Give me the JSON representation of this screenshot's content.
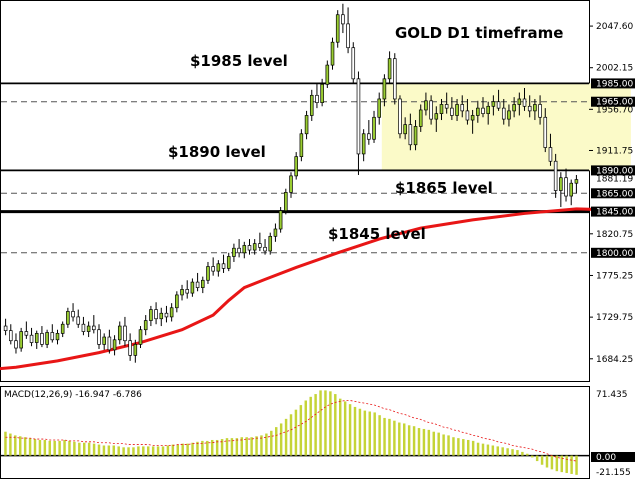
{
  "chart_data": {
    "type": "candlestick",
    "title": "GOLD D1 timeframe",
    "price_axis": {
      "range": [
        1660,
        2075
      ],
      "ticks": [
        {
          "value": 2047.6,
          "label": "2047.60"
        },
        {
          "value": 2002.15,
          "label": "2002.15"
        },
        {
          "value": 1956.7,
          "label": "1956.70"
        },
        {
          "value": 1911.75,
          "label": "1911.75"
        },
        {
          "value": 1820.75,
          "label": "1820.75"
        },
        {
          "value": 1775.25,
          "label": "1775.25"
        },
        {
          "value": 1729.75,
          "label": "1729.75"
        },
        {
          "value": 1684.25,
          "label": "1684.25"
        }
      ],
      "current_price": {
        "value": 1881.19,
        "label": "1881.19"
      }
    },
    "levels": [
      {
        "value": 1985.0,
        "label": "1985.00",
        "style": "solid"
      },
      {
        "value": 1965.0,
        "label": "1965.00",
        "style": "dashed"
      },
      {
        "value": 1890.0,
        "label": "1890.00",
        "style": "solid"
      },
      {
        "value": 1865.0,
        "label": "1865.00",
        "style": "dashed"
      },
      {
        "value": 1845.0,
        "label": "1845.00",
        "style": "thick"
      },
      {
        "value": 1800.0,
        "label": "1800.00",
        "style": "dashed"
      }
    ],
    "range_box": {
      "from_index": 73,
      "to_index": 120,
      "low": 1890,
      "high": 1985,
      "color": "#fbfac8"
    },
    "annotations": [
      {
        "text": "GOLD D1 timeframe"
      },
      {
        "text": "$1985 level"
      },
      {
        "text": "$1890 level"
      },
      {
        "text": "$1865 level"
      },
      {
        "text": "$1845 level"
      }
    ],
    "candles": [
      [
        1720,
        1728,
        1710,
        1715
      ],
      [
        1715,
        1722,
        1700,
        1704
      ],
      [
        1704,
        1712,
        1690,
        1696
      ],
      [
        1696,
        1718,
        1692,
        1714
      ],
      [
        1714,
        1725,
        1706,
        1710
      ],
      [
        1710,
        1718,
        1698,
        1702
      ],
      [
        1702,
        1715,
        1695,
        1712
      ],
      [
        1712,
        1720,
        1697,
        1700
      ],
      [
        1700,
        1716,
        1696,
        1713
      ],
      [
        1713,
        1722,
        1702,
        1705
      ],
      [
        1705,
        1716,
        1700,
        1712
      ],
      [
        1712,
        1725,
        1708,
        1722
      ],
      [
        1722,
        1740,
        1718,
        1736
      ],
      [
        1736,
        1745,
        1725,
        1730
      ],
      [
        1730,
        1738,
        1718,
        1722
      ],
      [
        1722,
        1730,
        1710,
        1714
      ],
      [
        1714,
        1725,
        1708,
        1720
      ],
      [
        1720,
        1732,
        1712,
        1716
      ],
      [
        1716,
        1722,
        1695,
        1700
      ],
      [
        1700,
        1712,
        1694,
        1708
      ],
      [
        1708,
        1716,
        1690,
        1694
      ],
      [
        1694,
        1710,
        1688,
        1705
      ],
      [
        1705,
        1725,
        1700,
        1720
      ],
      [
        1720,
        1730,
        1698,
        1704
      ],
      [
        1704,
        1712,
        1682,
        1688
      ],
      [
        1688,
        1705,
        1680,
        1700
      ],
      [
        1700,
        1720,
        1696,
        1716
      ],
      [
        1716,
        1732,
        1710,
        1726
      ],
      [
        1726,
        1742,
        1720,
        1738
      ],
      [
        1738,
        1746,
        1722,
        1728
      ],
      [
        1728,
        1740,
        1720,
        1734
      ],
      [
        1734,
        1742,
        1724,
        1730
      ],
      [
        1730,
        1745,
        1725,
        1740
      ],
      [
        1740,
        1758,
        1735,
        1754
      ],
      [
        1754,
        1765,
        1748,
        1760
      ],
      [
        1760,
        1770,
        1750,
        1756
      ],
      [
        1756,
        1772,
        1752,
        1768
      ],
      [
        1768,
        1778,
        1758,
        1762
      ],
      [
        1762,
        1774,
        1756,
        1770
      ],
      [
        1770,
        1790,
        1766,
        1785
      ],
      [
        1785,
        1795,
        1775,
        1780
      ],
      [
        1780,
        1792,
        1774,
        1788
      ],
      [
        1788,
        1798,
        1778,
        1783
      ],
      [
        1783,
        1800,
        1780,
        1796
      ],
      [
        1796,
        1810,
        1790,
        1805
      ],
      [
        1805,
        1815,
        1795,
        1800
      ],
      [
        1800,
        1812,
        1794,
        1808
      ],
      [
        1808,
        1815,
        1798,
        1803
      ],
      [
        1803,
        1815,
        1798,
        1810
      ],
      [
        1810,
        1822,
        1802,
        1806
      ],
      [
        1806,
        1815,
        1798,
        1802
      ],
      [
        1802,
        1822,
        1798,
        1818
      ],
      [
        1818,
        1832,
        1812,
        1826
      ],
      [
        1826,
        1850,
        1822,
        1846
      ],
      [
        1846,
        1870,
        1842,
        1866
      ],
      [
        1866,
        1888,
        1860,
        1884
      ],
      [
        1884,
        1910,
        1880,
        1905
      ],
      [
        1905,
        1935,
        1900,
        1930
      ],
      [
        1930,
        1955,
        1924,
        1950
      ],
      [
        1950,
        1978,
        1944,
        1972
      ],
      [
        1972,
        1985,
        1958,
        1964
      ],
      [
        1964,
        1990,
        1960,
        1984
      ],
      [
        1984,
        2010,
        1980,
        2005
      ],
      [
        2005,
        2035,
        2000,
        2030
      ],
      [
        2030,
        2065,
        2024,
        2060
      ],
      [
        2060,
        2072,
        2040,
        2050
      ],
      [
        2050,
        2068,
        2018,
        2024
      ],
      [
        2024,
        2030,
        1985,
        1990
      ],
      [
        1990,
        1998,
        1885,
        1908
      ],
      [
        1908,
        1935,
        1900,
        1930
      ],
      [
        1930,
        1945,
        1918,
        1924
      ],
      [
        1924,
        1955,
        1920,
        1948
      ],
      [
        1948,
        1975,
        1940,
        1968
      ],
      [
        1968,
        1995,
        1960,
        1990
      ],
      [
        1990,
        2020,
        1985,
        2012
      ],
      [
        2012,
        2018,
        1962,
        1968
      ],
      [
        1968,
        1972,
        1925,
        1930
      ],
      [
        1930,
        1948,
        1924,
        1940
      ],
      [
        1940,
        1952,
        1912,
        1918
      ],
      [
        1918,
        1945,
        1912,
        1938
      ],
      [
        1938,
        1962,
        1932,
        1956
      ],
      [
        1956,
        1975,
        1950,
        1966
      ],
      [
        1966,
        1972,
        1940,
        1946
      ],
      [
        1946,
        1960,
        1932,
        1952
      ],
      [
        1952,
        1968,
        1945,
        1962
      ],
      [
        1962,
        1975,
        1952,
        1958
      ],
      [
        1958,
        1970,
        1945,
        1950
      ],
      [
        1950,
        1968,
        1944,
        1962
      ],
      [
        1962,
        1972,
        1948,
        1955
      ],
      [
        1955,
        1968,
        1940,
        1945
      ],
      [
        1945,
        1956,
        1930,
        1950
      ],
      [
        1950,
        1966,
        1942,
        1958
      ],
      [
        1958,
        1970,
        1948,
        1952
      ],
      [
        1952,
        1965,
        1940,
        1960
      ],
      [
        1960,
        1972,
        1950,
        1965
      ],
      [
        1965,
        1978,
        1955,
        1958
      ],
      [
        1958,
        1968,
        1940,
        1946
      ],
      [
        1946,
        1962,
        1938,
        1955
      ],
      [
        1955,
        1970,
        1948,
        1962
      ],
      [
        1962,
        1975,
        1950,
        1968
      ],
      [
        1968,
        1980,
        1955,
        1960
      ],
      [
        1960,
        1972,
        1948,
        1955
      ],
      [
        1955,
        1968,
        1945,
        1962
      ],
      [
        1962,
        1972,
        1940,
        1948
      ],
      [
        1948,
        1958,
        1910,
        1915
      ],
      [
        1915,
        1930,
        1895,
        1900
      ],
      [
        1900,
        1908,
        1860,
        1868
      ],
      [
        1868,
        1888,
        1850,
        1882
      ],
      [
        1882,
        1892,
        1856,
        1862
      ],
      [
        1862,
        1880,
        1852,
        1876
      ],
      [
        1876,
        1885,
        1865,
        1880
      ]
    ],
    "moving_average": {
      "color": "#e81616",
      "points": [
        [
          38,
          1661
        ],
        [
          45,
          1664
        ],
        [
          55,
          1668
        ],
        [
          64,
          1671
        ],
        [
          72,
          1675
        ],
        [
          80,
          1682
        ],
        [
          88,
          1691
        ],
        [
          96,
          1702
        ],
        [
          104,
          1716
        ],
        [
          110,
          1732
        ],
        [
          113,
          1748
        ],
        [
          116,
          1762
        ],
        [
          120,
          1771
        ],
        [
          126,
          1784
        ],
        [
          134,
          1800
        ],
        [
          142,
          1815
        ],
        [
          150,
          1827
        ],
        [
          160,
          1836
        ],
        [
          170,
          1843
        ],
        [
          180,
          1848
        ],
        [
          186,
          1847
        ]
      ],
      "x_index_offset": -70
    },
    "macd": {
      "label": "MACD(12,26,9) -16.947 -6.786",
      "axis_top_label": "71.435",
      "axis_zero_label": "0.00",
      "axis_bottom_label": "-21.155",
      "range": [
        -21.155,
        71.435
      ],
      "histogram": [
        26,
        24,
        22,
        21,
        20,
        19,
        18,
        17,
        17,
        16,
        16,
        16,
        17,
        16,
        15,
        14,
        14,
        14,
        13,
        12,
        11,
        11,
        11,
        10,
        9,
        9,
        9,
        10,
        10,
        10,
        10,
        10,
        10,
        11,
        12,
        12,
        13,
        13,
        14,
        15,
        16,
        16,
        17,
        17,
        18,
        19,
        19,
        19,
        20,
        20,
        20,
        21,
        22,
        24,
        27,
        31,
        35,
        40,
        45,
        50,
        55,
        60,
        64,
        67,
        71,
        71,
        70,
        67,
        62,
        59,
        56,
        53,
        51,
        49,
        48,
        47,
        44,
        41,
        40,
        38,
        36,
        35,
        33,
        32,
        30,
        29,
        28,
        26,
        25,
        23,
        22,
        20,
        19,
        18,
        17,
        16,
        14,
        13,
        12,
        11,
        10,
        9,
        8,
        7,
        6,
        4,
        2,
        -2,
        -6,
        -10,
        -13,
        -15,
        -17,
        -18,
        -19,
        -20,
        -21
      ],
      "signal": [
        20,
        20,
        20,
        19,
        19,
        19,
        18,
        18,
        18,
        17,
        17,
        17,
        17,
        16,
        16,
        16,
        15,
        15,
        15,
        14,
        14,
        14,
        13,
        13,
        13,
        12,
        12,
        12,
        12,
        12,
        11,
        11,
        11,
        11,
        11,
        12,
        12,
        12,
        13,
        13,
        13,
        14,
        14,
        15,
        15,
        16,
        16,
        17,
        17,
        18,
        18,
        19,
        19,
        20,
        21,
        22,
        24,
        26,
        28,
        31,
        34,
        37,
        41,
        45,
        49,
        53,
        56,
        58,
        59,
        60,
        60,
        59,
        58,
        57,
        56,
        55,
        53,
        51,
        50,
        48,
        46,
        45,
        43,
        41,
        40,
        38,
        36,
        35,
        33,
        31,
        30,
        28,
        27,
        25,
        24,
        22,
        21,
        19,
        18,
        17,
        15,
        14,
        13,
        11,
        10,
        9,
        8,
        7,
        5,
        4,
        2,
        0,
        -2,
        -3,
        -4,
        -5,
        -6
      ]
    }
  }
}
